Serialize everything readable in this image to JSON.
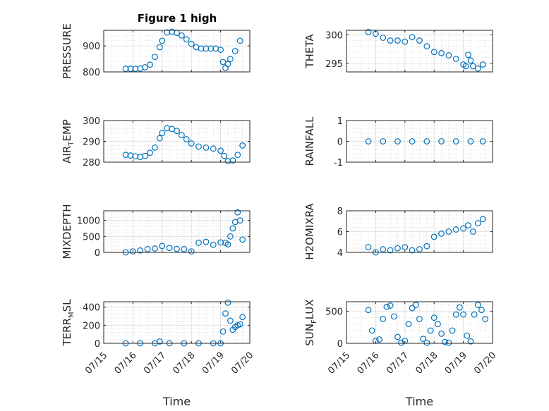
{
  "figure": {
    "title": "Figure 1 high"
  },
  "chart_data": [
    {
      "type": "scatter",
      "ylabel_main": "PRESSURE",
      "ylabel_sub": "",
      "ylim": [
        800,
        960
      ],
      "yticks": [
        800,
        900
      ],
      "ytick_labels": [
        "800",
        "900"
      ],
      "xlabel": "",
      "grid": true,
      "marker_color": "#0072BD",
      "x": [
        "07/15 18:00",
        "07/15 22:00",
        "07/16 02:00",
        "07/16 06:00",
        "07/16 10:00",
        "07/16 14:00",
        "07/16 18:00",
        "07/16 22:00",
        "07/17 00:00",
        "07/17 04:00",
        "07/17 08:00",
        "07/17 12:00",
        "07/17 16:00",
        "07/17 20:00",
        "07/18 00:00",
        "07/18 04:00",
        "07/18 08:00",
        "07/18 12:00",
        "07/18 16:00",
        "07/18 20:00",
        "07/19 00:00",
        "07/19 02:00",
        "07/19 04:00",
        "07/19 06:00",
        "07/19 08:00",
        "07/19 12:00",
        "07/19 16:00"
      ],
      "y": [
        812,
        812,
        812,
        813,
        818,
        828,
        858,
        895,
        920,
        952,
        955,
        950,
        940,
        925,
        908,
        895,
        890,
        890,
        890,
        890,
        885,
        838,
        815,
        830,
        850,
        880,
        920
      ]
    },
    {
      "type": "scatter",
      "ylabel_main": "THETA",
      "ylabel_sub": "",
      "ylim": [
        293.5,
        300.8
      ],
      "yticks": [
        295,
        300
      ],
      "ytick_labels": [
        "295",
        "300"
      ],
      "xlabel": "",
      "grid": true,
      "marker_color": "#0072BD",
      "x": [
        "07/15 18:00",
        "07/16 00:00",
        "07/16 06:00",
        "07/16 12:00",
        "07/16 18:00",
        "07/17 00:00",
        "07/17 06:00",
        "07/17 12:00",
        "07/17 18:00",
        "07/18 00:00",
        "07/18 06:00",
        "07/18 12:00",
        "07/18 18:00",
        "07/19 00:00",
        "07/19 02:00",
        "07/19 04:00",
        "07/19 06:00",
        "07/19 08:00",
        "07/19 12:00",
        "07/19 16:00"
      ],
      "y": [
        300.5,
        300.2,
        299.5,
        299.0,
        299.0,
        298.8,
        299.6,
        299.0,
        298.0,
        297.0,
        296.8,
        296.4,
        295.8,
        294.8,
        294.5,
        296.5,
        295.5,
        294.5,
        294.1,
        294.8
      ]
    },
    {
      "type": "scatter",
      "ylabel_main": "AIR",
      "ylabel_sub": "T",
      "ylabel_suffix": "EMP",
      "ylim": [
        280,
        300
      ],
      "yticks": [
        280,
        290,
        300
      ],
      "ytick_labels": [
        "280",
        "290",
        "300"
      ],
      "xlabel": "",
      "grid": true,
      "marker_color": "#0072BD",
      "x": [
        "07/15 18:00",
        "07/15 22:00",
        "07/16 02:00",
        "07/16 06:00",
        "07/16 10:00",
        "07/16 14:00",
        "07/16 18:00",
        "07/16 22:00",
        "07/17 00:00",
        "07/17 04:00",
        "07/17 08:00",
        "07/17 12:00",
        "07/17 16:00",
        "07/17 20:00",
        "07/18 00:00",
        "07/18 06:00",
        "07/18 12:00",
        "07/18 18:00",
        "07/19 00:00",
        "07/19 03:00",
        "07/19 06:00",
        "07/19 10:00",
        "07/19 14:00",
        "07/19 18:00"
      ],
      "y": [
        283.5,
        283.2,
        282.8,
        282.5,
        283.0,
        284.5,
        287.0,
        291.5,
        294.0,
        296.3,
        296.0,
        295.0,
        293.0,
        291.0,
        289.0,
        287.5,
        287.0,
        286.5,
        285.5,
        283.0,
        280.5,
        280.8,
        283.5,
        288.0
      ]
    },
    {
      "type": "scatter",
      "ylabel_main": "RAINFALL",
      "ylabel_sub": "",
      "ylim": [
        -1,
        1
      ],
      "yticks": [
        -1,
        0,
        1
      ],
      "ytick_labels": [
        "-1",
        "0",
        "1"
      ],
      "xlabel": "",
      "grid": true,
      "marker_color": "#0072BD",
      "x": [
        "07/15 18:00",
        "07/16 06:00",
        "07/16 18:00",
        "07/17 06:00",
        "07/17 18:00",
        "07/18 06:00",
        "07/18 18:00",
        "07/19 06:00",
        "07/19 16:00"
      ],
      "y": [
        0,
        0,
        0,
        0,
        0,
        0,
        0,
        0,
        0
      ]
    },
    {
      "type": "scatter",
      "ylabel_main": "MIXDEPTH",
      "ylabel_sub": "",
      "ylim": [
        0,
        1300
      ],
      "yticks": [
        0,
        500,
        1000
      ],
      "ytick_labels": [
        "0",
        "500",
        "1000"
      ],
      "xlabel": "",
      "grid": true,
      "marker_color": "#0072BD",
      "x": [
        "07/15 18:00",
        "07/16 00:00",
        "07/16 06:00",
        "07/16 12:00",
        "07/16 18:00",
        "07/17 00:00",
        "07/17 06:00",
        "07/17 12:00",
        "07/17 18:00",
        "07/18 00:00",
        "07/18 06:00",
        "07/18 12:00",
        "07/18 18:00",
        "07/19 00:00",
        "07/19 04:00",
        "07/19 06:00",
        "07/19 08:00",
        "07/19 10:00",
        "07/19 12:00",
        "07/19 14:00",
        "07/19 16:00",
        "07/19 18:00"
      ],
      "y": [
        0,
        30,
        60,
        100,
        120,
        200,
        140,
        110,
        100,
        30,
        300,
        330,
        240,
        310,
        300,
        250,
        500,
        750,
        950,
        1250,
        1000,
        400
      ]
    },
    {
      "type": "scatter",
      "ylabel_main": "H2OMIXRA",
      "ylabel_sub": "",
      "ylim": [
        4,
        8
      ],
      "yticks": [
        4,
        6,
        8
      ],
      "ytick_labels": [
        "4",
        "6",
        "8"
      ],
      "xlabel": "",
      "grid": true,
      "marker_color": "#0072BD",
      "x": [
        "07/15 18:00",
        "07/16 00:00",
        "07/16 06:00",
        "07/16 12:00",
        "07/16 18:00",
        "07/17 00:00",
        "07/17 06:00",
        "07/17 12:00",
        "07/17 18:00",
        "07/18 00:00",
        "07/18 06:00",
        "07/18 12:00",
        "07/18 18:00",
        "07/19 00:00",
        "07/19 04:00",
        "07/19 08:00",
        "07/19 12:00",
        "07/19 16:00"
      ],
      "y": [
        4.5,
        4.0,
        4.3,
        4.2,
        4.4,
        4.5,
        4.2,
        4.3,
        4.6,
        5.5,
        5.8,
        6.0,
        6.2,
        6.3,
        6.6,
        6.0,
        6.8,
        7.2
      ]
    },
    {
      "type": "scatter",
      "ylabel_main": "TERR",
      "ylabel_sub": "M",
      "ylabel_suffix": "SL",
      "ylim": [
        0,
        460
      ],
      "yticks": [
        0,
        200,
        400
      ],
      "ytick_labels": [
        "0",
        "200",
        "400"
      ],
      "xlabel": "Time",
      "xticks": [
        "07/15",
        "07/16",
        "07/17",
        "07/18",
        "07/19",
        "07/20"
      ],
      "grid": true,
      "marker_color": "#0072BD",
      "x": [
        "07/15 18:00",
        "07/16 06:00",
        "07/16 18:00",
        "07/16 22:00",
        "07/17 06:00",
        "07/17 18:00",
        "07/18 06:00",
        "07/18 18:00",
        "07/19 00:00",
        "07/19 02:00",
        "07/19 04:00",
        "07/19 06:00",
        "07/19 08:00",
        "07/19 10:00",
        "07/19 12:00",
        "07/19 14:00",
        "07/19 16:00",
        "07/19 18:00"
      ],
      "y": [
        0,
        0,
        0,
        20,
        0,
        0,
        0,
        0,
        0,
        130,
        330,
        450,
        250,
        150,
        180,
        200,
        210,
        290
      ]
    },
    {
      "type": "scatter",
      "ylabel_main": "SUN",
      "ylabel_sub": "F",
      "ylabel_suffix": "LUX",
      "ylim": [
        0,
        650
      ],
      "yticks": [
        0,
        500
      ],
      "ytick_labels": [
        "0",
        "500"
      ],
      "xlabel": "Time",
      "xticks": [
        "07/15",
        "07/16",
        "07/17",
        "07/18",
        "07/19",
        "07/20"
      ],
      "grid": true,
      "marker_color": "#0072BD",
      "x": [
        "07/15 18:00",
        "07/15 21:00",
        "07/16 00:00",
        "07/16 03:00",
        "07/16 06:00",
        "07/16 09:00",
        "07/16 12:00",
        "07/16 15:00",
        "07/16 18:00",
        "07/16 21:00",
        "07/17 00:00",
        "07/17 03:00",
        "07/17 06:00",
        "07/17 09:00",
        "07/17 12:00",
        "07/17 15:00",
        "07/17 18:00",
        "07/17 21:00",
        "07/18 00:00",
        "07/18 03:00",
        "07/18 06:00",
        "07/18 09:00",
        "07/18 12:00",
        "07/18 15:00",
        "07/18 18:00",
        "07/18 21:00",
        "07/19 00:00",
        "07/19 03:00",
        "07/19 06:00",
        "07/19 09:00",
        "07/19 12:00",
        "07/19 15:00",
        "07/19 18:00"
      ],
      "y": [
        520,
        200,
        40,
        60,
        380,
        570,
        590,
        420,
        100,
        10,
        40,
        300,
        550,
        600,
        380,
        70,
        10,
        200,
        400,
        300,
        150,
        20,
        10,
        200,
        450,
        560,
        450,
        120,
        30,
        450,
        600,
        520,
        380
      ]
    }
  ]
}
